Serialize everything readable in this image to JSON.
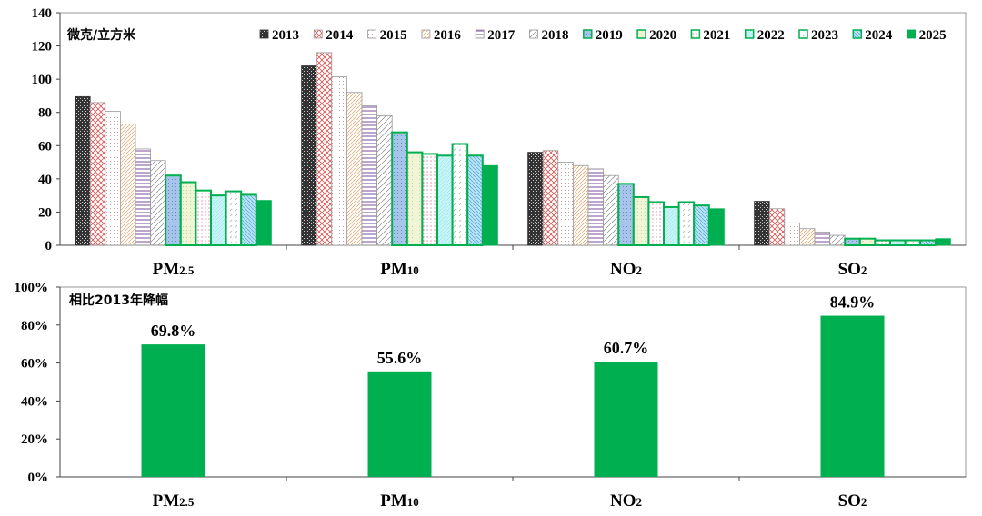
{
  "chart_data": [
    {
      "type": "bar",
      "unit_label": "微克/立方米",
      "categories": [
        "PM2.5",
        "PM10",
        "NO2",
        "SO2"
      ],
      "category_labels": [
        {
          "main": "PM",
          "sub": "2.5"
        },
        {
          "main": "PM",
          "sub": "10"
        },
        {
          "main": "NO",
          "sub": "2"
        },
        {
          "main": "SO",
          "sub": "2"
        }
      ],
      "ylim": [
        0,
        140
      ],
      "yticks": [
        0,
        20,
        40,
        60,
        80,
        100,
        120,
        140
      ],
      "legend_position": "top",
      "series": [
        {
          "name": "2013",
          "values": [
            89.5,
            108,
            56,
            26.5
          ],
          "style": "dense-check",
          "color": "#555555"
        },
        {
          "name": "2014",
          "values": [
            85.9,
            116,
            57,
            22
          ],
          "style": "crosshatch",
          "color": "#d9534f"
        },
        {
          "name": "2015",
          "values": [
            80.6,
            101.5,
            50,
            13.5
          ],
          "style": "dots",
          "color": "#c9a0a0"
        },
        {
          "name": "2016",
          "values": [
            73,
            92,
            48,
            10
          ],
          "style": "diagonal",
          "color": "#e0a060"
        },
        {
          "name": "2017",
          "values": [
            58,
            84,
            46,
            8
          ],
          "style": "horizontal",
          "color": "#7a4e9e"
        },
        {
          "name": "2018",
          "values": [
            51,
            78,
            42,
            6
          ],
          "style": "wide-diagonal",
          "color": "#888888"
        },
        {
          "name": "2019",
          "values": [
            42,
            68,
            37,
            4
          ],
          "style": "blue-dots",
          "color": "#5b8fd0"
        },
        {
          "name": "2020",
          "values": [
            38,
            56,
            29,
            4
          ],
          "style": "yellow-dots",
          "color": "#c8d88a"
        },
        {
          "name": "2021",
          "values": [
            33,
            55,
            26,
            3
          ],
          "style": "pink-dash",
          "color": "#e080a0"
        },
        {
          "name": "2022",
          "values": [
            30,
            54,
            23,
            3
          ],
          "style": "cyan",
          "color": "#7fdfe8"
        },
        {
          "name": "2023",
          "values": [
            32.5,
            61,
            26,
            3
          ],
          "style": "dash",
          "color": "#9ab0b8"
        },
        {
          "name": "2024",
          "values": [
            30.4,
            54,
            24,
            3
          ],
          "style": "blue-diagonal",
          "color": "#4fb0e0"
        },
        {
          "name": "2025",
          "values": [
            27,
            48,
            22,
            4
          ],
          "style": "solid",
          "color": "#00b050"
        }
      ],
      "grid": false
    },
    {
      "type": "bar",
      "title": "相比2013年降幅",
      "categories": [
        "PM2.5",
        "PM10",
        "NO2",
        "SO2"
      ],
      "category_labels": [
        {
          "main": "PM",
          "sub": "2.5"
        },
        {
          "main": "PM",
          "sub": "10"
        },
        {
          "main": "NO",
          "sub": "2"
        },
        {
          "main": "SO",
          "sub": "2"
        }
      ],
      "values": [
        69.8,
        55.6,
        60.7,
        84.9
      ],
      "data_labels": [
        "69.8%",
        "55.6%",
        "60.7%",
        "84.9%"
      ],
      "ylim": [
        0,
        100
      ],
      "yticks": [
        "0%",
        "20%",
        "40%",
        "60%",
        "80%",
        "100%"
      ],
      "color": "#00b050",
      "grid": false
    }
  ]
}
